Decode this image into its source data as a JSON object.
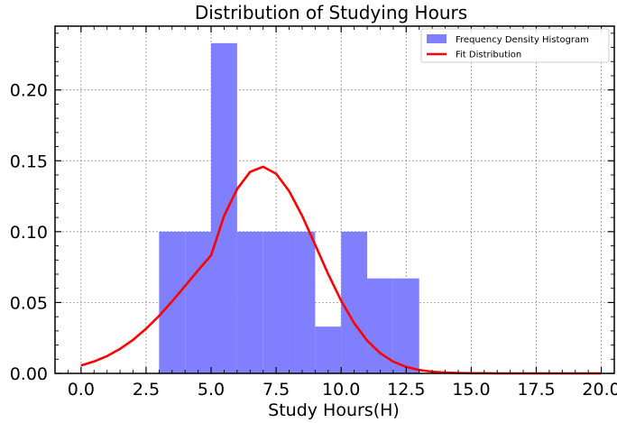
{
  "chart_data": {
    "type": "histogram-with-line",
    "title": "Distribution of Studying Hours",
    "xlabel": "Study Hours(H)",
    "ylabel": "",
    "xlim": [
      -1.0,
      20.5
    ],
    "ylim": [
      0.0,
      0.245
    ],
    "xticks": [
      0.0,
      2.5,
      5.0,
      7.5,
      10.0,
      12.5,
      15.0,
      17.5,
      20.0
    ],
    "xtick_labels": [
      "0.0",
      "2.5",
      "5.0",
      "7.5",
      "10.0",
      "12.5",
      "15.0",
      "17.5",
      "20.0"
    ],
    "yticks": [
      0.0,
      0.05,
      0.1,
      0.15,
      0.2
    ],
    "ytick_labels": [
      "0.00",
      "0.05",
      "0.10",
      "0.15",
      "0.20"
    ],
    "grid": true,
    "legend_position": "upper-right",
    "histogram": {
      "name": "Frequency Density Histogram",
      "color": "#8080ff",
      "bins": [
        {
          "x0": 3,
          "x1": 4,
          "density": 0.1
        },
        {
          "x0": 4,
          "x1": 5,
          "density": 0.1
        },
        {
          "x0": 5,
          "x1": 6,
          "density": 0.233
        },
        {
          "x0": 6,
          "x1": 7,
          "density": 0.1
        },
        {
          "x0": 7,
          "x1": 8,
          "density": 0.1
        },
        {
          "x0": 8,
          "x1": 9,
          "density": 0.1
        },
        {
          "x0": 9,
          "x1": 10,
          "density": 0.033
        },
        {
          "x0": 10,
          "x1": 11,
          "density": 0.1
        },
        {
          "x0": 11,
          "x1": 12,
          "density": 0.067
        },
        {
          "x0": 12,
          "x1": 13,
          "density": 0.067
        }
      ]
    },
    "fit_line": {
      "name": "Fit Distribution",
      "color": "#ff0000",
      "x": [
        0,
        0.5,
        1,
        1.5,
        2,
        2.5,
        3,
        3.5,
        4,
        4.5,
        5,
        5.5,
        6,
        6.5,
        7,
        7.5,
        8,
        8.5,
        9,
        9.5,
        10,
        10.5,
        11,
        11.5,
        12,
        12.5,
        13,
        13.5,
        14,
        14.5,
        15,
        15.5,
        16,
        16.5,
        17,
        17.5,
        18,
        18.5,
        19,
        19.5,
        20
      ],
      "y": [
        0.0056,
        0.0084,
        0.0122,
        0.0173,
        0.0237,
        0.0315,
        0.0406,
        0.0508,
        0.0617,
        0.0727,
        0.0833,
        0.1112,
        0.1301,
        0.1422,
        0.1458,
        0.1409,
        0.1286,
        0.1112,
        0.0908,
        0.0701,
        0.0513,
        0.0354,
        0.0231,
        0.0143,
        0.0083,
        0.0046,
        0.0024,
        0.0012,
        0.0006,
        0.0003,
        0.0001,
        0.0001,
        0.0,
        0.0,
        0.0,
        0.0,
        0.0,
        0.0,
        0.0,
        0.0,
        0.0
      ]
    }
  }
}
